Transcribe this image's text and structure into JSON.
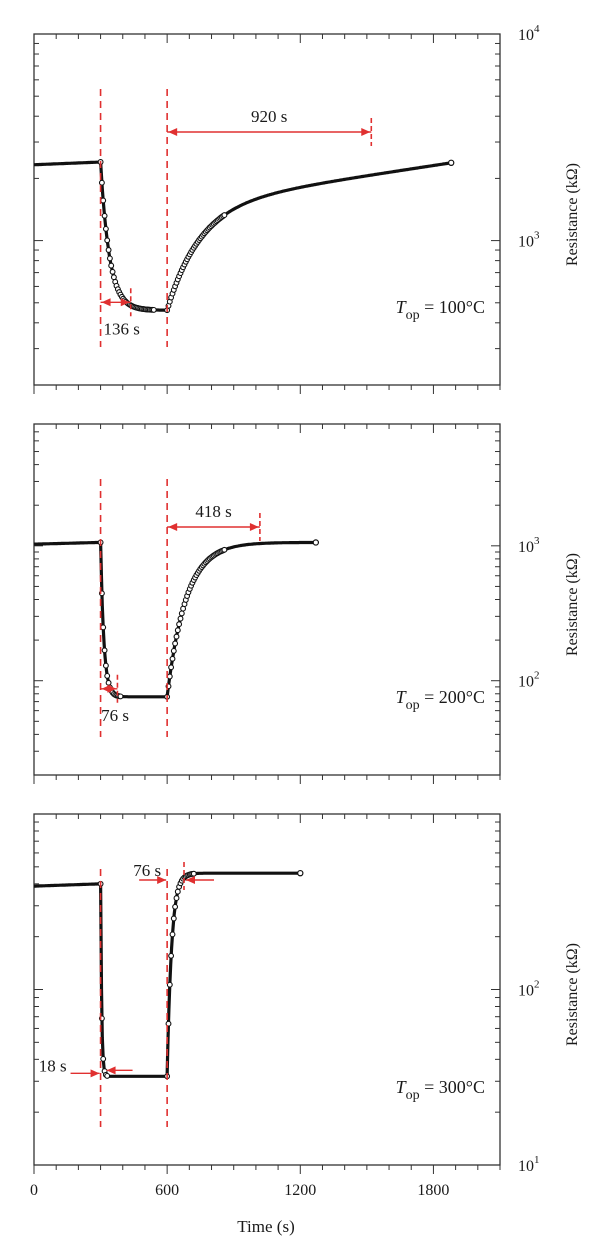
{
  "x_axis": {
    "label": "Time (s)",
    "ticks": [
      0,
      600,
      1200,
      1800
    ],
    "range": [
      0,
      2100
    ]
  },
  "colors": {
    "data": "#111111",
    "annotation": "#e03030"
  },
  "chart_data": [
    {
      "type": "scatter",
      "ylabel": "Resistance (kΩ)",
      "y_scale": "log",
      "ylim": [
        200,
        10000
      ],
      "y_major_ticks": [
        1000,
        10000
      ],
      "y_tick_labels": [
        {
          "mantissa": "10",
          "exp": "3"
        },
        {
          "mantissa": "10",
          "exp": "4"
        }
      ],
      "temperature": {
        "symbol": "T",
        "subscript": "op",
        "value": "= 100°C"
      },
      "gas_on": 300,
      "gas_off": 600,
      "response_annotation": {
        "label": "136 s",
        "start": 300,
        "end": 436
      },
      "recovery_annotation": {
        "label": "920 s",
        "start": 600,
        "end": 1520
      },
      "curve": {
        "baseline": 2400,
        "floor": 460,
        "recovered": 2380,
        "t_end": 1880,
        "resp_tau": 40,
        "rec_tau": 140,
        "rec_slope": 0.48
      }
    },
    {
      "type": "scatter",
      "ylabel": "Resistance (kΩ)",
      "y_scale": "log",
      "ylim": [
        20,
        8000
      ],
      "y_major_ticks": [
        100,
        1000
      ],
      "y_tick_labels": [
        {
          "mantissa": "10",
          "exp": "2"
        },
        {
          "mantissa": "10",
          "exp": "3"
        }
      ],
      "temperature": {
        "symbol": "T",
        "subscript": "op",
        "value": "= 200°C"
      },
      "gas_on": 300,
      "gas_off": 600,
      "response_annotation": {
        "label": "76 s",
        "start": 300,
        "end": 376
      },
      "recovery_annotation": {
        "label": "418 s",
        "start": 600,
        "end": 1018
      },
      "curve": {
        "baseline": 1060,
        "floor": 76,
        "recovered": 1060,
        "t_end": 1270,
        "resp_tau": 15,
        "rec_tau": 85,
        "rec_slope": 0.0
      }
    },
    {
      "type": "scatter",
      "ylabel": "Resistance (kΩ)",
      "y_scale": "log",
      "ylim": [
        10,
        1000
      ],
      "y_major_ticks": [
        10,
        100
      ],
      "y_tick_labels": [
        {
          "mantissa": "10",
          "exp": "1"
        },
        {
          "mantissa": "10",
          "exp": "2"
        }
      ],
      "temperature": {
        "symbol": "T",
        "subscript": "op",
        "value": "= 300°C"
      },
      "gas_on": 300,
      "gas_off": 600,
      "response_annotation": {
        "label": "18 s",
        "start": 300,
        "end": 318
      },
      "recovery_annotation": {
        "label": "76 s",
        "start": 600,
        "end": 676
      },
      "curve": {
        "baseline": 400,
        "floor": 32,
        "recovered": 460,
        "t_end": 1200,
        "resp_tau": 5,
        "rec_tau": 20,
        "rec_slope": -0.0
      }
    }
  ]
}
